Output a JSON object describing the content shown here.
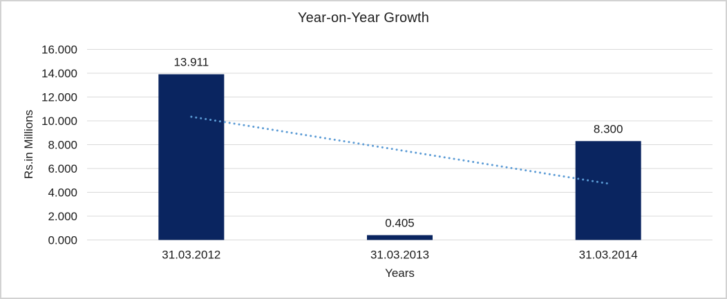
{
  "window": {
    "background_color": "#ffffff",
    "border_color": "#d2d2d2"
  },
  "chart_data": {
    "type": "bar",
    "title": "Year-on-Year Growth",
    "xlabel": "Years",
    "ylabel": "Rs.in Millions",
    "categories": [
      "31.03.2012",
      "31.03.2013",
      "31.03.2014"
    ],
    "values": [
      13.911,
      0.405,
      8.3
    ],
    "data_labels": [
      "13.911",
      "0.405",
      "8.300"
    ],
    "ylim": [
      0,
      16
    ],
    "ytick_step": 2,
    "ytick_labels": [
      "0.000",
      "2.000",
      "4.000",
      "6.000",
      "8.000",
      "10.000",
      "12.000",
      "14.000",
      "16.000"
    ],
    "grid": true,
    "legend_position": "none",
    "bar_color": "#0A2560",
    "gridline_color": "#D9D9D9",
    "text_color": "#1a1a1a",
    "trendline": {
      "type": "linear",
      "style": "dotted",
      "color": "#5B9BD5",
      "x_span": [
        0,
        2
      ],
      "values": [
        10.344,
        4.733
      ]
    }
  }
}
